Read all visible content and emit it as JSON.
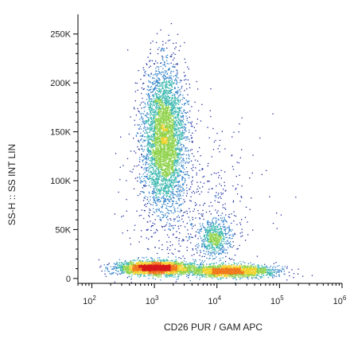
{
  "chart_data": {
    "type": "scatter",
    "title": "",
    "xlabel": "CD26 PUR / GAM APC",
    "ylabel": "SS-H :: SS INT LIN",
    "x_scale": "log",
    "x_range": [
      60,
      1000000
    ],
    "y_range": [
      -5000,
      262000
    ],
    "x_ticks": [
      {
        "value": 100,
        "base": "10",
        "exp": "2"
      },
      {
        "value": 1000,
        "base": "10",
        "exp": "3"
      },
      {
        "value": 10000,
        "base": "10",
        "exp": "4"
      },
      {
        "value": 100000,
        "base": "10",
        "exp": "5"
      },
      {
        "value": 1000000,
        "base": "10",
        "exp": "6"
      }
    ],
    "y_ticks": [
      {
        "value": 0,
        "label": "0"
      },
      {
        "value": 50000,
        "label": "50K"
      },
      {
        "value": 100000,
        "label": "100K"
      },
      {
        "value": 150000,
        "label": "150K"
      },
      {
        "value": 200000,
        "label": "200K"
      },
      {
        "value": 250000,
        "label": "250K"
      }
    ],
    "grid": false,
    "legend": "none",
    "density_colors": [
      "#1a2a9c",
      "#2e7fc9",
      "#3cb8b0",
      "#8fd24a",
      "#f2d22e",
      "#f07a1e",
      "#d7191c"
    ],
    "populations": [
      {
        "x_log10_center": 3.15,
        "x_log10_sd": 0.17,
        "y_center": 145000,
        "y_sd": 35000,
        "count": 4200
      },
      {
        "x_log10_center": 3.0,
        "x_log10_sd": 0.3,
        "y_center": 11000,
        "y_sd": 3500,
        "count": 2600
      },
      {
        "x_log10_center": 4.2,
        "x_log10_sd": 0.35,
        "y_center": 8000,
        "y_sd": 3000,
        "count": 2000
      },
      {
        "x_log10_center": 3.95,
        "x_log10_sd": 0.12,
        "y_center": 42000,
        "y_sd": 10000,
        "count": 600
      },
      {
        "x_log10_center": 3.6,
        "x_log10_sd": 0.5,
        "y_center": 60000,
        "y_sd": 50000,
        "count": 700
      }
    ]
  }
}
